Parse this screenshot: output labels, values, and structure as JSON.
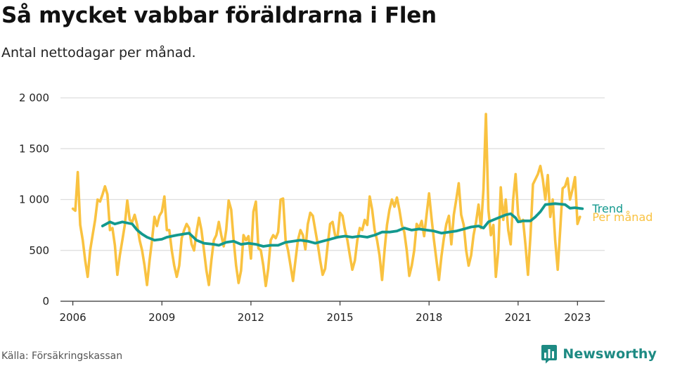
{
  "title": "Så mycket vabbar föräldrarna i Flen",
  "subtitle": "Antal nettodagar per månad.",
  "source": "Källa: Försäkringskassan",
  "brand": "Newsworthy",
  "colors": {
    "monthly": "#f9c240",
    "trend": "#13998e",
    "grid": "#dddddd",
    "axis": "#333333",
    "brand": "#1d8a83"
  },
  "chart_data": {
    "type": "line",
    "title": "Så mycket vabbar föräldrarna i Flen",
    "subtitle": "Antal nettodagar per månad.",
    "xlabel": "",
    "ylabel": "",
    "ylim": [
      0,
      2000
    ],
    "xlim": [
      "2005-08",
      "2023-12"
    ],
    "yticks": [
      0,
      500,
      1000,
      1500,
      2000
    ],
    "ytick_labels": [
      "0",
      "500",
      "1 000",
      "1 500",
      "2 000"
    ],
    "xticks": [
      "2006",
      "2009",
      "2012",
      "2015",
      "2018",
      "2021",
      "2023"
    ],
    "grid": true,
    "legend": "right, at line ends",
    "series": [
      {
        "name": "Per månad",
        "color": "#f9c240",
        "points": [
          [
            "2006-01",
            910
          ],
          [
            "2006-02",
            890
          ],
          [
            "2006-03",
            1270
          ],
          [
            "2006-04",
            750
          ],
          [
            "2006-05",
            600
          ],
          [
            "2006-06",
            400
          ],
          [
            "2006-07",
            240
          ],
          [
            "2006-08",
            500
          ],
          [
            "2006-09",
            650
          ],
          [
            "2006-10",
            800
          ],
          [
            "2006-11",
            1000
          ],
          [
            "2006-12",
            980
          ],
          [
            "2007-01",
            1050
          ],
          [
            "2007-02",
            1130
          ],
          [
            "2007-03",
            1050
          ],
          [
            "2007-04",
            700
          ],
          [
            "2007-05",
            720
          ],
          [
            "2007-06",
            550
          ],
          [
            "2007-07",
            260
          ],
          [
            "2007-08",
            450
          ],
          [
            "2007-09",
            600
          ],
          [
            "2007-10",
            750
          ],
          [
            "2007-11",
            990
          ],
          [
            "2007-12",
            800
          ],
          [
            "2008-01",
            780
          ],
          [
            "2008-02",
            850
          ],
          [
            "2008-03",
            750
          ],
          [
            "2008-04",
            600
          ],
          [
            "2008-05",
            500
          ],
          [
            "2008-06",
            350
          ],
          [
            "2008-07",
            160
          ],
          [
            "2008-08",
            400
          ],
          [
            "2008-09",
            600
          ],
          [
            "2008-10",
            830
          ],
          [
            "2008-11",
            740
          ],
          [
            "2008-12",
            840
          ],
          [
            "2009-01",
            880
          ],
          [
            "2009-02",
            1030
          ],
          [
            "2009-03",
            700
          ],
          [
            "2009-04",
            700
          ],
          [
            "2009-05",
            500
          ],
          [
            "2009-06",
            350
          ],
          [
            "2009-07",
            240
          ],
          [
            "2009-08",
            350
          ],
          [
            "2009-09",
            620
          ],
          [
            "2009-10",
            700
          ],
          [
            "2009-11",
            760
          ],
          [
            "2009-12",
            720
          ],
          [
            "2010-01",
            560
          ],
          [
            "2010-02",
            500
          ],
          [
            "2010-03",
            680
          ],
          [
            "2010-04",
            820
          ],
          [
            "2010-05",
            700
          ],
          [
            "2010-06",
            500
          ],
          [
            "2010-07",
            300
          ],
          [
            "2010-08",
            160
          ],
          [
            "2010-09",
            400
          ],
          [
            "2010-10",
            600
          ],
          [
            "2010-11",
            650
          ],
          [
            "2010-12",
            780
          ],
          [
            "2011-01",
            650
          ],
          [
            "2011-02",
            540
          ],
          [
            "2011-03",
            700
          ],
          [
            "2011-04",
            990
          ],
          [
            "2011-05",
            900
          ],
          [
            "2011-06",
            600
          ],
          [
            "2011-07",
            350
          ],
          [
            "2011-08",
            180
          ],
          [
            "2011-09",
            300
          ],
          [
            "2011-10",
            650
          ],
          [
            "2011-11",
            600
          ],
          [
            "2011-12",
            640
          ],
          [
            "2012-01",
            420
          ],
          [
            "2012-02",
            880
          ],
          [
            "2012-03",
            980
          ],
          [
            "2012-04",
            520
          ],
          [
            "2012-05",
            500
          ],
          [
            "2012-06",
            350
          ],
          [
            "2012-07",
            150
          ],
          [
            "2012-08",
            320
          ],
          [
            "2012-09",
            600
          ],
          [
            "2012-10",
            650
          ],
          [
            "2012-11",
            620
          ],
          [
            "2012-12",
            680
          ],
          [
            "2013-01",
            1000
          ],
          [
            "2013-02",
            1010
          ],
          [
            "2013-03",
            600
          ],
          [
            "2013-04",
            500
          ],
          [
            "2013-05",
            350
          ],
          [
            "2013-06",
            200
          ],
          [
            "2013-07",
            400
          ],
          [
            "2013-08",
            600
          ],
          [
            "2013-09",
            700
          ],
          [
            "2013-10",
            650
          ],
          [
            "2013-11",
            510
          ],
          [
            "2013-12",
            760
          ],
          [
            "2014-01",
            870
          ],
          [
            "2014-02",
            840
          ],
          [
            "2014-03",
            700
          ],
          [
            "2014-04",
            560
          ],
          [
            "2014-05",
            400
          ],
          [
            "2014-06",
            260
          ],
          [
            "2014-07",
            320
          ],
          [
            "2014-08",
            550
          ],
          [
            "2014-09",
            760
          ],
          [
            "2014-10",
            780
          ],
          [
            "2014-11",
            650
          ],
          [
            "2014-12",
            630
          ],
          [
            "2015-01",
            870
          ],
          [
            "2015-02",
            840
          ],
          [
            "2015-03",
            700
          ],
          [
            "2015-04",
            600
          ],
          [
            "2015-05",
            450
          ],
          [
            "2015-06",
            310
          ],
          [
            "2015-07",
            400
          ],
          [
            "2015-08",
            600
          ],
          [
            "2015-09",
            720
          ],
          [
            "2015-10",
            700
          ],
          [
            "2015-11",
            800
          ],
          [
            "2015-12",
            750
          ],
          [
            "2016-01",
            1030
          ],
          [
            "2016-02",
            900
          ],
          [
            "2016-03",
            700
          ],
          [
            "2016-04",
            600
          ],
          [
            "2016-05",
            450
          ],
          [
            "2016-06",
            210
          ],
          [
            "2016-07",
            500
          ],
          [
            "2016-08",
            750
          ],
          [
            "2016-09",
            900
          ],
          [
            "2016-10",
            1000
          ],
          [
            "2016-11",
            930
          ],
          [
            "2016-12",
            1020
          ],
          [
            "2017-01",
            900
          ],
          [
            "2017-02",
            750
          ],
          [
            "2017-03",
            680
          ],
          [
            "2017-04",
            500
          ],
          [
            "2017-05",
            250
          ],
          [
            "2017-06",
            350
          ],
          [
            "2017-07",
            500
          ],
          [
            "2017-08",
            760
          ],
          [
            "2017-09",
            720
          ],
          [
            "2017-10",
            790
          ],
          [
            "2017-11",
            640
          ],
          [
            "2017-12",
            850
          ],
          [
            "2018-01",
            1060
          ],
          [
            "2018-02",
            820
          ],
          [
            "2018-03",
            600
          ],
          [
            "2018-04",
            400
          ],
          [
            "2018-05",
            210
          ],
          [
            "2018-06",
            440
          ],
          [
            "2018-07",
            620
          ],
          [
            "2018-08",
            760
          ],
          [
            "2018-09",
            840
          ],
          [
            "2018-10",
            560
          ],
          [
            "2018-11",
            850
          ],
          [
            "2018-12",
            1000
          ],
          [
            "2019-01",
            1160
          ],
          [
            "2019-02",
            850
          ],
          [
            "2019-03",
            750
          ],
          [
            "2019-04",
            500
          ],
          [
            "2019-05",
            350
          ],
          [
            "2019-06",
            450
          ],
          [
            "2019-07",
            650
          ],
          [
            "2019-08",
            780
          ],
          [
            "2019-09",
            950
          ],
          [
            "2019-10",
            720
          ],
          [
            "2019-11",
            1100
          ],
          [
            "2019-12",
            1840
          ],
          [
            "2020-01",
            900
          ],
          [
            "2020-02",
            650
          ],
          [
            "2020-03",
            750
          ],
          [
            "2020-04",
            240
          ],
          [
            "2020-05",
            500
          ],
          [
            "2020-06",
            1120
          ],
          [
            "2020-07",
            800
          ],
          [
            "2020-08",
            1000
          ],
          [
            "2020-09",
            700
          ],
          [
            "2020-10",
            560
          ],
          [
            "2020-11",
            1000
          ],
          [
            "2020-12",
            1250
          ],
          [
            "2021-01",
            850
          ],
          [
            "2021-02",
            780
          ],
          [
            "2021-03",
            800
          ],
          [
            "2021-04",
            550
          ],
          [
            "2021-05",
            260
          ],
          [
            "2021-06",
            650
          ],
          [
            "2021-07",
            1150
          ],
          [
            "2021-08",
            1200
          ],
          [
            "2021-09",
            1250
          ],
          [
            "2021-10",
            1330
          ],
          [
            "2021-11",
            1200
          ],
          [
            "2021-12",
            1000
          ],
          [
            "2022-01",
            1240
          ],
          [
            "2022-02",
            830
          ],
          [
            "2022-03",
            1000
          ],
          [
            "2022-04",
            600
          ],
          [
            "2022-05",
            310
          ],
          [
            "2022-06",
            700
          ],
          [
            "2022-07",
            1110
          ],
          [
            "2022-08",
            1130
          ],
          [
            "2022-09",
            1210
          ],
          [
            "2022-10",
            1000
          ],
          [
            "2022-11",
            1100
          ],
          [
            "2022-12",
            1220
          ],
          [
            "2023-01",
            760
          ],
          [
            "2023-02",
            830
          ]
        ]
      },
      {
        "name": "Trend",
        "color": "#13998e",
        "points": [
          [
            "2007-01",
            740
          ],
          [
            "2007-04",
            780
          ],
          [
            "2007-06",
            760
          ],
          [
            "2007-09",
            780
          ],
          [
            "2008-01",
            760
          ],
          [
            "2008-03",
            700
          ],
          [
            "2008-05",
            660
          ],
          [
            "2008-07",
            630
          ],
          [
            "2008-10",
            600
          ],
          [
            "2009-01",
            610
          ],
          [
            "2009-03",
            630
          ],
          [
            "2009-07",
            650
          ],
          [
            "2009-12",
            670
          ],
          [
            "2010-03",
            600
          ],
          [
            "2010-06",
            570
          ],
          [
            "2010-10",
            560
          ],
          [
            "2010-12",
            550
          ],
          [
            "2011-03",
            580
          ],
          [
            "2011-06",
            590
          ],
          [
            "2011-09",
            560
          ],
          [
            "2011-12",
            570
          ],
          [
            "2012-03",
            560
          ],
          [
            "2012-06",
            540
          ],
          [
            "2012-09",
            550
          ],
          [
            "2012-12",
            550
          ],
          [
            "2013-03",
            580
          ],
          [
            "2013-06",
            590
          ],
          [
            "2013-09",
            600
          ],
          [
            "2013-12",
            590
          ],
          [
            "2014-03",
            570
          ],
          [
            "2014-06",
            590
          ],
          [
            "2014-09",
            610
          ],
          [
            "2014-12",
            630
          ],
          [
            "2015-03",
            640
          ],
          [
            "2015-06",
            630
          ],
          [
            "2015-09",
            640
          ],
          [
            "2015-12",
            630
          ],
          [
            "2016-03",
            650
          ],
          [
            "2016-06",
            680
          ],
          [
            "2016-09",
            680
          ],
          [
            "2016-12",
            690
          ],
          [
            "2017-03",
            720
          ],
          [
            "2017-06",
            700
          ],
          [
            "2017-09",
            710
          ],
          [
            "2017-12",
            700
          ],
          [
            "2018-03",
            690
          ],
          [
            "2018-06",
            670
          ],
          [
            "2018-09",
            680
          ],
          [
            "2018-12",
            690
          ],
          [
            "2019-03",
            710
          ],
          [
            "2019-06",
            730
          ],
          [
            "2019-09",
            740
          ],
          [
            "2019-11",
            720
          ],
          [
            "2020-01",
            780
          ],
          [
            "2020-03",
            800
          ],
          [
            "2020-05",
            820
          ],
          [
            "2020-08",
            850
          ],
          [
            "2020-10",
            860
          ],
          [
            "2020-12",
            820
          ],
          [
            "2021-01",
            780
          ],
          [
            "2021-03",
            790
          ],
          [
            "2021-06",
            790
          ],
          [
            "2021-08",
            830
          ],
          [
            "2021-10",
            880
          ],
          [
            "2021-12",
            950
          ],
          [
            "2022-02",
            955
          ],
          [
            "2022-04",
            960
          ],
          [
            "2022-06",
            955
          ],
          [
            "2022-08",
            950
          ],
          [
            "2022-10",
            915
          ],
          [
            "2022-12",
            920
          ],
          [
            "2023-03",
            910
          ]
        ]
      }
    ]
  }
}
